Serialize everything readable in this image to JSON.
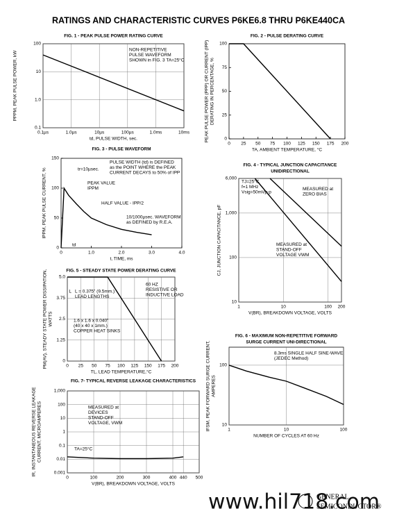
{
  "header": {
    "title": "RATINGS AND CHARACTERISTIC CURVES P6KE6.8 THRU P6KE440CA"
  },
  "footer": {
    "logo": [
      "GENERAL",
      "SEMICONDUCTOR®"
    ],
    "watermark": "www.hil718.com"
  },
  "chart_data": [
    {
      "type": "line",
      "title": "FIG. 1 - PEAK PULSE POWER RATING CURVE",
      "xlabel": [
        "td, PULSE WIDTH, sec."
      ],
      "ylabel": [
        "PPPM, PEAK PULSE POWER, kW"
      ],
      "x": [
        0.1,
        10000
      ],
      "values": [
        40,
        0.4
      ],
      "color": "#000000",
      "xlim": [
        0.1,
        10000
      ],
      "ylim": [
        0.1,
        100
      ],
      "log_x": true,
      "log_y": true,
      "grid": true,
      "xticks": [
        {
          "value": 0.1,
          "label": "0.1µs"
        },
        {
          "value": 1,
          "label": "1.0µs"
        },
        {
          "value": 10,
          "label": "10µs"
        },
        {
          "value": 100,
          "label": "100µs"
        },
        {
          "value": 1000,
          "label": "1.0ms"
        },
        {
          "value": 10000,
          "label": "10ms"
        }
      ],
      "yticks": [
        0.1,
        {
          "value": 1,
          "label": "1.0"
        },
        10,
        100
      ],
      "annotations": [
        [
          "NON-REPETITIVE",
          "PULSE WAVEFORM",
          "SHOWN in FIG. 3  TA=25°C"
        ]
      ]
    },
    {
      "type": "line",
      "title": "FIG. 2 - PULSE DERATING CURVE",
      "xlabel": [
        "TA, AMBIENT TEMPERATURE, °C"
      ],
      "ylabel": [
        "PEAK PULSE POWER (PPP) OR CURRENT (IPP)",
        "DERATING IN PERCENTAGE, %"
      ],
      "x": [
        0,
        25,
        175
      ],
      "values": [
        100,
        100,
        0
      ],
      "color": "#000000",
      "xlim": [
        0,
        200
      ],
      "ylim": [
        0,
        100
      ],
      "log_x": false,
      "log_y": false,
      "grid": false,
      "xticks": [
        0,
        25,
        50,
        75,
        100,
        125,
        150,
        175,
        200
      ],
      "yticks": [
        0,
        25,
        50,
        75,
        100
      ],
      "annotations": []
    },
    {
      "type": "line",
      "title": "FIG. 3 - PULSE WAVEFORM",
      "xlabel": [
        "t, TIME, ms"
      ],
      "ylabel": [
        "IPPM, PEAK PULSE CURRENT, %"
      ],
      "x": [
        0,
        0.1,
        0.25,
        0.5,
        0.75,
        1,
        1.5,
        2,
        2.5,
        3
      ],
      "values": [
        0,
        100,
        88,
        74,
        61,
        50,
        39,
        31,
        26,
        22
      ],
      "color": "#000000",
      "xlim": [
        0,
        4
      ],
      "ylim": [
        0,
        150
      ],
      "log_x": false,
      "log_y": false,
      "grid": false,
      "xticks": [
        0,
        {
          "value": 1,
          "label": "1.0"
        },
        {
          "value": 2,
          "label": "2.0"
        },
        {
          "value": 3,
          "label": "3.0"
        },
        {
          "value": 4,
          "label": "4.0"
        }
      ],
      "yticks": [
        0,
        50,
        100,
        150
      ],
      "annotations": [
        [
          "PULSE WIDTH (td) is DEFINED",
          "as the POINT WHERE the PEAK",
          "CURRENT DECAYS to 50% of IPP"
        ],
        [
          "tr=10µsec."
        ],
        [
          "PEAK VALUE",
          "IPPM"
        ],
        [
          "HALF VALUE - IPP/2"
        ],
        [
          "10/1000µsec. WAVEFORM",
          "as DEFINED by R.E.A."
        ],
        [
          "td"
        ]
      ]
    },
    {
      "type": "line",
      "title": "FIG. 4 - TYPICAL JUNCTION CAPACITANCE",
      "subtitle": "UNIDIRECTIONAL",
      "xlabel": [
        "V(BR), BREAKDOWN VOLTAGE, VOLTS"
      ],
      "ylabel": [
        "CJ, JUNCTION CAPACITANCE, pF"
      ],
      "series": [
        {
          "name": "MEASURED at ZERO BIAS",
          "color": "#000000",
          "x": [
            5,
            200
          ],
          "values": [
            6000,
            180
          ]
        },
        {
          "name": "MEASURED at STAND-OFF VOLTAGE VWM",
          "color": "#000000",
          "x": [
            2.3,
            200
          ],
          "values": [
            6000,
            29
          ]
        }
      ],
      "xlim": [
        1,
        200
      ],
      "ylim": [
        10,
        6000
      ],
      "log_x": true,
      "log_y": true,
      "grid": true,
      "xticks": [
        1,
        10,
        100,
        200
      ],
      "yticks": [
        10,
        100,
        {
          "value": 1000,
          "label": "1,000"
        },
        {
          "value": 6000,
          "label": "6,000"
        }
      ],
      "annotations": [
        [
          "TJ=25°C",
          "f=1 MHz",
          "Vsig=50mVp-p"
        ]
      ]
    },
    {
      "type": "line",
      "title": "FIG. 5 - STEADY STATE POWER DERATING CURVE",
      "xlabel": [
        "TL, LEAD TEMPERATURE,°C"
      ],
      "ylabel": [
        "PM(AV), STEADY STATE POWER DISSIPATION,",
        "WATTS"
      ],
      "x": [
        0,
        75,
        175
      ],
      "values": [
        5,
        5,
        0
      ],
      "color": "#000000",
      "xlim": [
        0,
        200
      ],
      "ylim": [
        0,
        5
      ],
      "log_x": false,
      "log_y": false,
      "grid": true,
      "xticks": [
        0,
        25,
        50,
        75,
        100,
        125,
        150,
        175,
        200
      ],
      "yticks": [
        0,
        1.25,
        2.5,
        3.75,
        {
          "value": 5,
          "label": "5.0"
        }
      ],
      "annotations": [
        [
          "60 HZ",
          "RESISTIVE OR",
          "INDUCTIVE LOAD"
        ],
        [
          "L = 0.375\" (9.5mm.)",
          "LEAD LENGTHS"
        ],
        [
          "1.6 x 1.6 x 0.040\"",
          "(40 x 40 x 1mm.)",
          "COPPER HEAT SINKS"
        ],
        [
          "L"
        ]
      ]
    },
    {
      "type": "line",
      "title": "FIG. 6 - MAXIMUM NON-REPETITIVE FORWARD",
      "subtitle": "SURGE CURRENT UNI-DIRECTIONAL",
      "xlabel": [
        "NUMBER OF CYCLES AT 60 Hz"
      ],
      "ylabel": [
        "IFSM, PEAK FORWARD SURGE CURRENT,",
        "AMPERES"
      ],
      "x": [
        1,
        2,
        5,
        10,
        20,
        50,
        100
      ],
      "values": [
        100,
        80,
        63,
        54,
        42,
        30,
        22
      ],
      "color": "#000000",
      "xlim": [
        1,
        100
      ],
      "ylim": [
        10,
        200
      ],
      "log_x": true,
      "log_y": true,
      "grid": true,
      "xticks": [
        1,
        10,
        100
      ],
      "yticks": [
        10,
        100
      ],
      "annotations": [
        [
          "8.3ms SINGLE HALF SINE-WAVE",
          "(JEDEC Method)"
        ]
      ]
    },
    {
      "type": "line",
      "title": "FIG. 7- TYPICAL REVERSE LEAKAGE CHARACTERISTICS",
      "xlabel": [
        "V(BR), BREAKDOWN VOLTAGE, VOLTS"
      ],
      "ylabel": [
        "IR, INSTANTANEOUS REVERSE LEAKAGE",
        "CURRENT, MICROAMPERES"
      ],
      "x": [
        0,
        100,
        200,
        300,
        400,
        440
      ],
      "values": [
        0.015,
        0.012,
        0.011,
        0.011,
        0.012,
        0.015
      ],
      "color": "#000000",
      "xlim": [
        0,
        500
      ],
      "ylim": [
        0.001,
        1000
      ],
      "log_x": false,
      "log_y": true,
      "grid": true,
      "xticks": [
        0,
        100,
        200,
        300,
        400,
        440,
        500
      ],
      "yticks": [
        0.001,
        0.01,
        0.1,
        1,
        10,
        100,
        {
          "value": 1000,
          "label": "1,000"
        }
      ],
      "annotations": [
        [
          "MEASURED at",
          "DEVICES",
          "STAND-OFF",
          "VOLTAGE, VWM"
        ],
        [
          "TA=25°C"
        ]
      ]
    }
  ]
}
